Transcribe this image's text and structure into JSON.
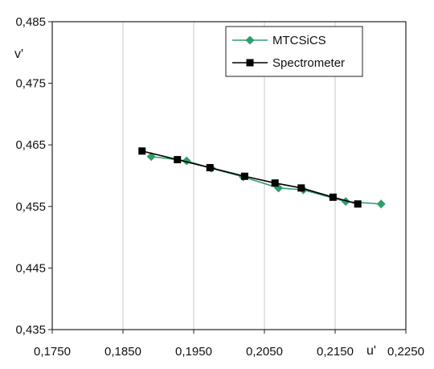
{
  "chart_data": {
    "type": "scatter",
    "xlabel": "u'",
    "ylabel": "v'",
    "xlim": [
      0.175,
      0.225
    ],
    "ylim": [
      0.435,
      0.485
    ],
    "x_ticks": [
      "0,1750",
      "0,1850",
      "0,1950",
      "0,2050",
      "0,2150",
      "0,2250"
    ],
    "y_ticks": [
      "0,485",
      "0,475",
      "0,465",
      "0,455",
      "0,445",
      "0,435"
    ],
    "grid": "vertical",
    "legend": "top-right",
    "series": [
      {
        "name": "MTCSiCS",
        "color": "#2e9e6b",
        "marker": "diamond",
        "x": [
          0.189,
          0.194,
          0.1975,
          0.202,
          0.207,
          0.2105,
          0.2165,
          0.2215
        ],
        "y": [
          0.4631,
          0.4624,
          0.4612,
          0.4598,
          0.458,
          0.4577,
          0.4558,
          0.4554
        ]
      },
      {
        "name": "Spectrometer",
        "color": "#000000",
        "marker": "square",
        "x": [
          0.1877,
          0.1927,
          0.1973,
          0.2022,
          0.2065,
          0.2102,
          0.2147,
          0.2182
        ],
        "y": [
          0.464,
          0.4626,
          0.4613,
          0.4599,
          0.4588,
          0.458,
          0.4565,
          0.4554
        ]
      }
    ]
  }
}
